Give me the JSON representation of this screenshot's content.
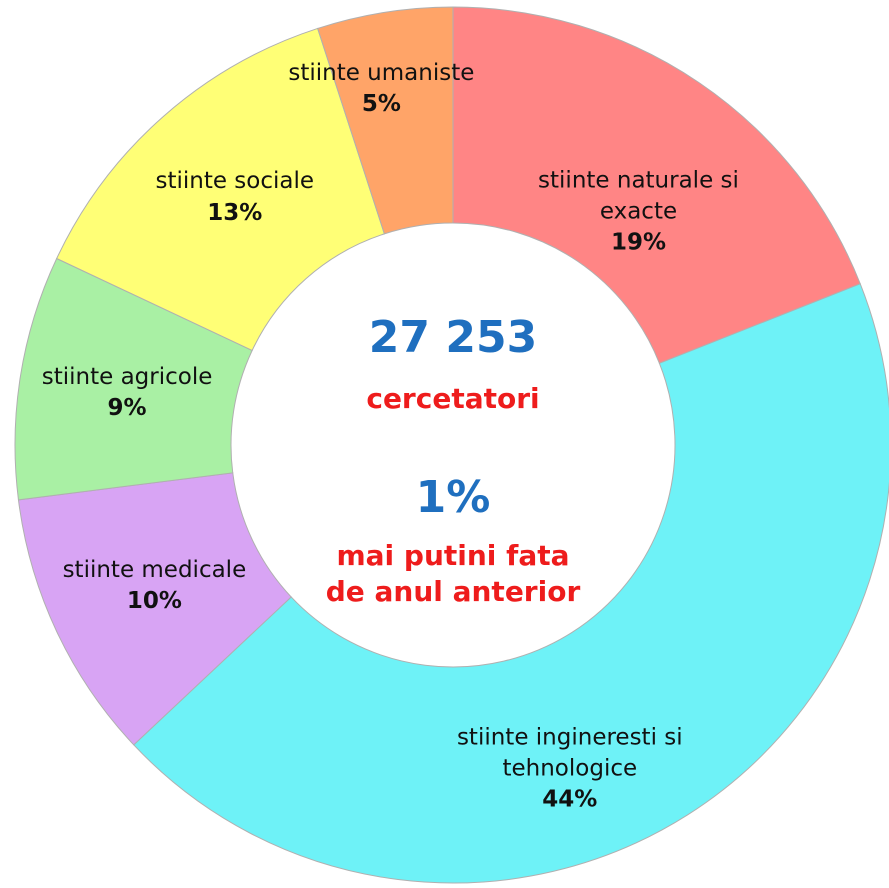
{
  "chart_data": {
    "type": "donut",
    "categories": [
      "stiinte naturale si exacte",
      "stiinte ingineresti si tehnologice",
      "stiinte medicale",
      "stiinte agricole",
      "stiinte sociale",
      "stiinte umaniste"
    ],
    "values": [
      19,
      44,
      10,
      9,
      13,
      5
    ],
    "value_labels": [
      "19%",
      "44%",
      "10%",
      "9%",
      "13%",
      "5%"
    ],
    "colors": [
      "#ff8585",
      "#6ef2f7",
      "#d8a4f4",
      "#a9f0a4",
      "#ffff76",
      "#ffa468"
    ],
    "center_text": {
      "total": "27 253",
      "total_label": "cercetatori",
      "change": "1%",
      "change_label": "mai putini fata de anul anterior"
    }
  }
}
